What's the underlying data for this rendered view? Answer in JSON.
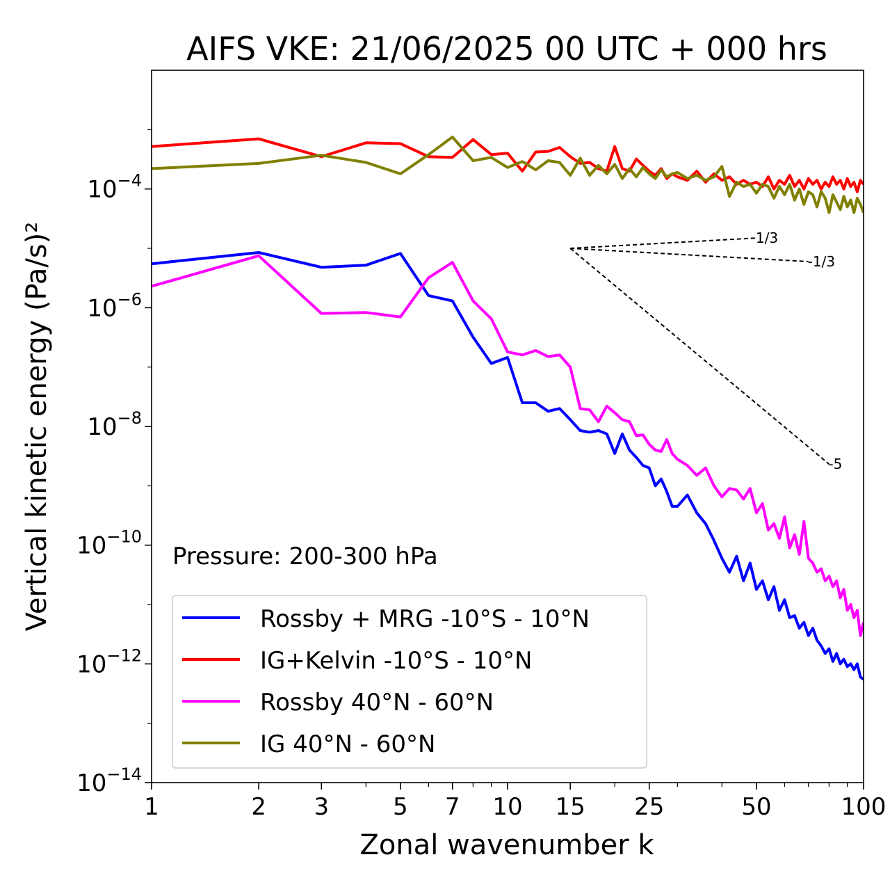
{
  "chart_data": {
    "type": "line",
    "title": "AIFS VKE: 21/06/2025 00 UTC + 000 hrs",
    "xlabel": "Zonal wavenumber k",
    "ylabel": "Vertical kinetic energy (Pa/s)²",
    "x_scale": "log",
    "y_scale": "log",
    "xlim": [
      1,
      100
    ],
    "ylim": [
      1e-14,
      0.01
    ],
    "x_ticks": [
      1,
      2,
      3,
      5,
      7,
      10,
      15,
      25,
      50,
      100
    ],
    "x_tick_labels": [
      "1",
      "2",
      "3",
      "5",
      "7",
      "10",
      "15",
      "25",
      "50",
      "100"
    ],
    "y_ticks": [
      {
        "value": 0.0001,
        "base": "10",
        "exp": "−4"
      },
      {
        "value": 1e-06,
        "base": "10",
        "exp": "−6"
      },
      {
        "value": 1e-08,
        "base": "10",
        "exp": "−8"
      },
      {
        "value": 1e-10,
        "base": "10",
        "exp": "−10"
      },
      {
        "value": 1e-12,
        "base": "10",
        "exp": "−12"
      },
      {
        "value": 1e-14,
        "base": "10",
        "exp": "−14"
      }
    ],
    "annotation": "Pressure: 200-300 hPa",
    "legend_position": "lower-left",
    "reference_slopes": [
      {
        "label": "1/3",
        "exponent": 0.3333,
        "k_start": 15,
        "k_end": 50,
        "e_start": 1e-05
      },
      {
        "label": "-1/3",
        "exponent": -0.3333,
        "k_start": 15,
        "k_end": 70,
        "e_start": 1e-05
      },
      {
        "label": "-5",
        "exponent": -5,
        "k_start": 15,
        "k_end": 80,
        "e_start": 1e-05
      }
    ],
    "series": [
      {
        "name": "Rossby + MRG -10°S - 10°N",
        "color": "#0000ff",
        "x": [
          1,
          2,
          3,
          4,
          5,
          6,
          7,
          8,
          9,
          10,
          11,
          12,
          13,
          14,
          15,
          16,
          17,
          18,
          19,
          20,
          21,
          22,
          23,
          24,
          25,
          26,
          27,
          28,
          29,
          30,
          32,
          34,
          36,
          38,
          40,
          42,
          44,
          46,
          48,
          50,
          52,
          54,
          56,
          58,
          60,
          62,
          64,
          66,
          68,
          70,
          72,
          74,
          76,
          78,
          80,
          82,
          84,
          86,
          88,
          90,
          92,
          94,
          96,
          98,
          100
        ],
        "y": [
          5.5e-06,
          8.5e-06,
          4.8e-06,
          5.2e-06,
          8.2e-06,
          1.6e-06,
          1.3e-06,
          3.2e-07,
          1.15e-07,
          1.45e-07,
          2.5e-08,
          2.5e-08,
          1.8e-08,
          2e-08,
          1.3e-08,
          8.5e-09,
          8e-09,
          8.5e-09,
          7.5e-09,
          3.5e-09,
          7.5e-09,
          4e-09,
          3e-09,
          2.2e-09,
          2e-09,
          1e-09,
          1.3e-09,
          8e-10,
          4.5e-10,
          4.5e-10,
          7e-10,
          3.5e-10,
          2.3e-10,
          1.2e-10,
          6e-11,
          3.5e-11,
          6.5e-11,
          2.5e-11,
          5e-11,
          1.8e-11,
          2.5e-11,
          1.2e-11,
          2e-11,
          8e-12,
          1.2e-11,
          6e-12,
          6.5e-12,
          4e-12,
          5e-12,
          3e-12,
          4e-12,
          2.5e-12,
          2e-12,
          1.5e-12,
          1.8e-12,
          1.1e-12,
          1.5e-12,
          1e-12,
          1.2e-12,
          9e-13,
          1e-12,
          8e-13,
          1e-12,
          6e-13,
          5.5e-13
        ]
      },
      {
        "name": "IG+Kelvin -10°S - 10°N",
        "color": "#ff0000",
        "x": [
          1,
          2,
          3,
          4,
          5,
          6,
          7,
          8,
          9,
          10,
          11,
          12,
          13,
          14,
          15,
          16,
          17,
          18,
          19,
          20,
          21,
          22,
          23,
          24,
          25,
          26,
          27,
          28,
          29,
          30,
          32,
          34,
          36,
          38,
          40,
          42,
          44,
          46,
          48,
          50,
          52,
          54,
          56,
          58,
          60,
          62,
          64,
          66,
          68,
          70,
          72,
          74,
          76,
          78,
          80,
          82,
          84,
          86,
          88,
          90,
          92,
          94,
          96,
          98,
          100
        ],
        "y": [
          0.00052,
          0.0007,
          0.00035,
          0.0006,
          0.00058,
          0.00035,
          0.00034,
          0.00068,
          0.00038,
          0.0004,
          0.0002,
          0.00042,
          0.00043,
          0.0005,
          0.00035,
          0.00027,
          0.00028,
          0.00022,
          0.0002,
          0.00052,
          0.00022,
          0.0002,
          0.00032,
          0.00025,
          0.0002,
          0.00017,
          0.00022,
          0.00015,
          0.00018,
          0.00016,
          0.00014,
          0.0002,
          0.00013,
          0.00018,
          0.00014,
          0.00016,
          0.00012,
          0.00014,
          0.00012,
          0.00013,
          0.00011,
          0.00016,
          0.0001,
          0.00014,
          0.00012,
          0.00017,
          0.00011,
          0.00014,
          0.0001,
          0.00015,
          0.00012,
          0.00014,
          0.0001,
          0.00013,
          0.00011,
          0.00016,
          0.00012,
          0.00014,
          0.0001,
          0.00015,
          0.00011,
          0.00013,
          9e-05,
          0.00014,
          0.00012
        ]
      },
      {
        "name": "Rossby 40°N - 60°N",
        "color": "#ff00ff",
        "x": [
          1,
          2,
          3,
          4,
          5,
          6,
          7,
          8,
          9,
          10,
          11,
          12,
          13,
          14,
          15,
          16,
          17,
          18,
          19,
          20,
          21,
          22,
          23,
          24,
          25,
          26,
          27,
          28,
          29,
          30,
          32,
          34,
          36,
          38,
          40,
          42,
          44,
          46,
          48,
          50,
          52,
          54,
          56,
          58,
          60,
          62,
          64,
          66,
          68,
          70,
          72,
          74,
          76,
          78,
          80,
          82,
          84,
          86,
          88,
          90,
          92,
          94,
          96,
          98,
          100
        ],
        "y": [
          2.3e-06,
          7.5e-06,
          8e-07,
          8.3e-07,
          7e-07,
          3.2e-06,
          5.8e-06,
          1.3e-06,
          6.5e-07,
          1.8e-07,
          1.6e-07,
          1.9e-07,
          1.5e-07,
          1.6e-07,
          1e-07,
          2e-08,
          1.9e-08,
          1.2e-08,
          2.2e-08,
          1.7e-08,
          1.3e-08,
          1.2e-08,
          7e-09,
          7.2e-09,
          5e-09,
          4e-09,
          3.8e-09,
          6e-09,
          3.5e-09,
          2.8e-09,
          2.2e-09,
          1.5e-09,
          2e-09,
          1e-09,
          6.5e-10,
          9e-10,
          8.5e-10,
          6e-10,
          9e-10,
          3.5e-10,
          5e-10,
          1.8e-10,
          2.3e-10,
          1.3e-10,
          3e-10,
          9e-11,
          1.5e-10,
          7e-11,
          2.5e-10,
          6e-11,
          5e-11,
          3.5e-11,
          4e-11,
          2.5e-11,
          3e-11,
          2e-11,
          2.5e-11,
          1.3e-11,
          1.8e-11,
          8e-12,
          1e-11,
          6e-12,
          8e-12,
          3e-12,
          5e-12
        ]
      },
      {
        "name": "IG 40°N - 60°N",
        "color": "#808000",
        "x": [
          1,
          2,
          3,
          4,
          5,
          6,
          7,
          8,
          9,
          10,
          11,
          12,
          13,
          14,
          15,
          16,
          17,
          18,
          19,
          20,
          21,
          22,
          23,
          24,
          25,
          26,
          27,
          28,
          29,
          30,
          32,
          34,
          36,
          38,
          40,
          42,
          44,
          46,
          48,
          50,
          52,
          54,
          56,
          58,
          60,
          62,
          64,
          66,
          68,
          70,
          72,
          74,
          76,
          78,
          80,
          82,
          84,
          86,
          88,
          90,
          92,
          94,
          96,
          98,
          100
        ],
        "y": [
          0.00022,
          0.00027,
          0.00037,
          0.00028,
          0.00018,
          0.00038,
          0.00075,
          0.0003,
          0.00034,
          0.00023,
          0.00029,
          0.00021,
          0.0003,
          0.00028,
          0.00017,
          0.00033,
          0.00017,
          0.00025,
          0.00018,
          0.00026,
          0.00015,
          0.00022,
          0.00016,
          0.00023,
          0.00018,
          0.00015,
          0.00021,
          0.00016,
          0.00018,
          0.00019,
          0.00015,
          0.00017,
          0.00014,
          0.00016,
          0.00024,
          7.5e-05,
          0.00013,
          0.00011,
          0.00012,
          8.5e-05,
          0.00012,
          0.00011,
          7e-05,
          0.00011,
          8e-05,
          0.00012,
          6.5e-05,
          0.0001,
          5.5e-05,
          9e-05,
          8e-05,
          5e-05,
          9e-05,
          7e-05,
          4e-05,
          8e-05,
          6e-05,
          4.5e-05,
          7.5e-05,
          5e-05,
          6.5e-05,
          4e-05,
          7e-05,
          5.5e-05,
          4e-05
        ]
      }
    ]
  }
}
